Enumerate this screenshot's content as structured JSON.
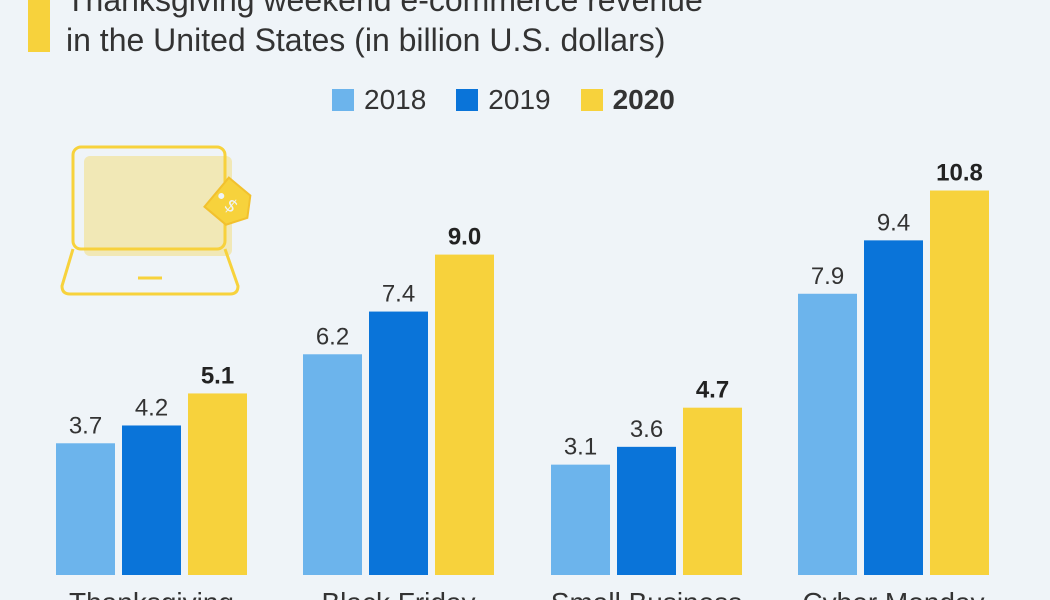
{
  "chart_data": {
    "type": "bar",
    "title_lines": [
      "Thanksgiving weekend e-commerce revenue",
      "in the United States (in billion U.S. dollars)"
    ],
    "categories": [
      "Thanksgiving",
      "Black Friday",
      "Small Business",
      "Cyber Monday"
    ],
    "series": [
      {
        "name": "2018",
        "color": "#6cb4ec",
        "bold": false,
        "values": [
          3.7,
          6.2,
          3.1,
          7.9
        ]
      },
      {
        "name": "2019",
        "color": "#0a74d9",
        "bold": false,
        "values": [
          4.2,
          7.4,
          3.6,
          9.4
        ]
      },
      {
        "name": "2020",
        "color": "#f7d23c",
        "bold": true,
        "values": [
          5.1,
          9.0,
          4.7,
          10.8
        ]
      }
    ],
    "value_labels": [
      [
        "3.7",
        "6.2",
        "3.1",
        "7.9"
      ],
      [
        "4.2",
        "7.4",
        "3.6",
        "9.4"
      ],
      [
        "5.1",
        "9.0",
        "4.7",
        "10.8"
      ]
    ],
    "xlabel": "",
    "ylabel": "",
    "ylim": [
      0,
      12
    ],
    "grid": false,
    "legend_position": "top-center"
  },
  "decoration": {
    "icon": "laptop-price-tag-icon",
    "accent_color": "#f7d23c"
  }
}
